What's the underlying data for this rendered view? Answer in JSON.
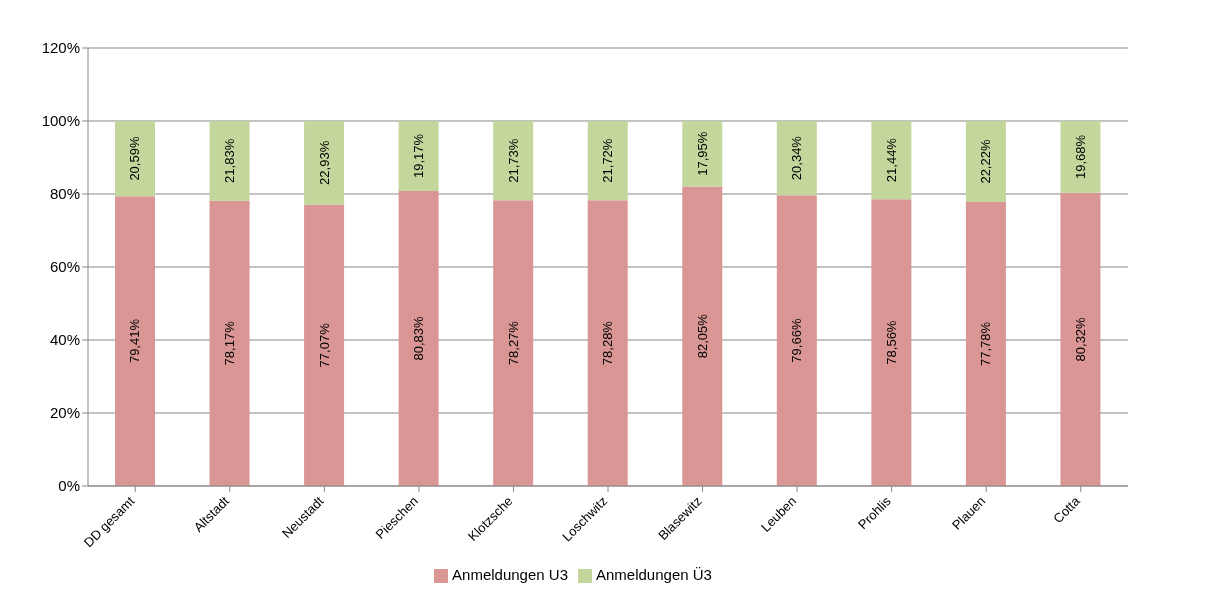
{
  "chart_data": {
    "type": "bar",
    "stacked": true,
    "categories": [
      "DD gesamt",
      "Altstadt",
      "Neustadt",
      "Pieschen",
      "Klotzsche",
      "Loschwitz",
      "Blasewitz",
      "Leuben",
      "Prohlis",
      "Plauen",
      "Cotta"
    ],
    "series": [
      {
        "name": "Anmeldungen U3",
        "color": "#d99694",
        "values": [
          79.41,
          78.17,
          77.07,
          80.83,
          78.27,
          78.28,
          82.05,
          79.66,
          78.56,
          77.78,
          80.32
        ],
        "value_labels": [
          "79,41%",
          "78,17%",
          "77,07%",
          "80,83%",
          "78,27%",
          "78,28%",
          "82,05%",
          "79,66%",
          "78,56%",
          "77,78%",
          "80,32%"
        ]
      },
      {
        "name": "Anmeldungen Ü3",
        "color": "#c3d69b",
        "values": [
          20.59,
          21.83,
          22.93,
          19.17,
          21.73,
          21.72,
          17.95,
          20.34,
          21.44,
          22.22,
          19.68
        ],
        "value_labels": [
          "20,59%",
          "21,83%",
          "22,93%",
          "19,17%",
          "21,73%",
          "21,72%",
          "17,95%",
          "20,34%",
          "21,44%",
          "22,22%",
          "19,68%"
        ]
      }
    ],
    "ylim": [
      0,
      120
    ],
    "yticks": [
      {
        "value": 0,
        "label": "0%"
      },
      {
        "value": 20,
        "label": "20%"
      },
      {
        "value": 40,
        "label": "40%"
      },
      {
        "value": 60,
        "label": "60%"
      },
      {
        "value": 80,
        "label": "80%"
      },
      {
        "value": 100,
        "label": "100%"
      },
      {
        "value": 120,
        "label": "120%"
      }
    ],
    "grid": "y",
    "legend": "bottom"
  }
}
